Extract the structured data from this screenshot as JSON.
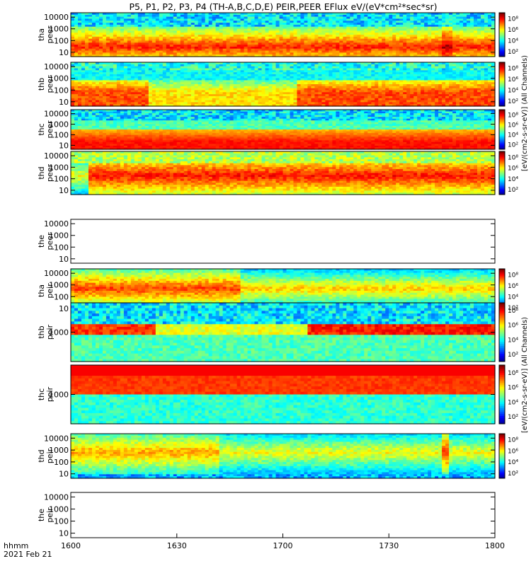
{
  "chart_data": {
    "type": "heatmap",
    "title": "P5, P1, P2, P3, P4 (TH-A,B,C,D,E) PEIR,PEER EFlux eV/(eV*cm²*sec*sr)",
    "x_label_line1": "hhmm",
    "x_label_line2": "2021 Feb 21",
    "x_ticks": [
      "1600",
      "1630",
      "1700",
      "1730",
      "1800"
    ],
    "x_range": [
      "16:00",
      "18:00"
    ],
    "colormap": [
      "#00007f",
      "#0000ff",
      "#007fff",
      "#00ffff",
      "#7fff7f",
      "#ffff00",
      "#ff7f00",
      "#ff0000",
      "#7f0000"
    ],
    "colorbar_ticks": [
      "10⁸",
      "10⁶",
      "10⁴",
      "10²"
    ],
    "colorbar_labels": {
      "peer": "[eV/(cm2-s-sr-eV)] (All Channels)",
      "peir": "[eV/(cm2-s-sr-eV)] (All Channels)"
    },
    "y_scale": "log",
    "panels": [
      {
        "name": "tha-peer",
        "ylabel_1": "tha",
        "ylabel_2": "peer",
        "yticks": [
          "10000",
          "1000",
          "100",
          "10"
        ],
        "ymin": 6,
        "ymax": 30000,
        "has_data": true,
        "profile": "tha_e"
      },
      {
        "name": "thb-peer",
        "ylabel_1": "thb",
        "ylabel_2": "peer",
        "yticks": [
          "10000",
          "1000",
          "100",
          "10"
        ],
        "ymin": 6,
        "ymax": 30000,
        "has_data": true,
        "profile": "thb_e"
      },
      {
        "name": "thc-peer",
        "ylabel_1": "thc",
        "ylabel_2": "peer",
        "yticks": [
          "10000",
          "1000",
          "100",
          "10"
        ],
        "ymin": 6,
        "ymax": 30000,
        "has_data": true,
        "profile": "thc_e"
      },
      {
        "name": "thd-peer",
        "ylabel_1": "thd",
        "ylabel_2": "peer",
        "yticks": [
          "10000",
          "1000",
          "100",
          "10"
        ],
        "ymin": 6,
        "ymax": 30000,
        "has_data": true,
        "profile": "thd_e"
      },
      {
        "name": "the-peer",
        "ylabel_1": "the",
        "ylabel_2": "peer",
        "yticks": [
          "10000",
          "1000",
          "100",
          "10"
        ],
        "ymin": 6,
        "ymax": 30000,
        "has_data": false
      },
      {
        "name": "tha-peir",
        "ylabel_1": "tha",
        "ylabel_2": "peir",
        "yticks": [
          "10000",
          "1000",
          "100",
          "10"
        ],
        "ymin": 6,
        "ymax": 30000,
        "has_data": true,
        "profile": "tha_i"
      },
      {
        "name": "thb-peir",
        "ylabel_1": "thb",
        "ylabel_2": "peir",
        "yticks": [
          "1000"
        ],
        "ymin": 6,
        "ymax": 30000,
        "has_data": true,
        "profile": "thb_i"
      },
      {
        "name": "thc-peir",
        "ylabel_1": "thc",
        "ylabel_2": "peir",
        "yticks": [
          "1000"
        ],
        "ymin": 6,
        "ymax": 30000,
        "has_data": true,
        "profile": "thc_i"
      },
      {
        "name": "thd-peir",
        "ylabel_1": "thd",
        "ylabel_2": "peir",
        "yticks": [
          "10000",
          "1000",
          "100",
          "10"
        ],
        "ymin": 6,
        "ymax": 30000,
        "has_data": true,
        "profile": "thd_i"
      },
      {
        "name": "the-peir",
        "ylabel_1": "the",
        "ylabel_2": "peir",
        "yticks": [
          "10000",
          "1000",
          "100",
          "10"
        ],
        "ymin": 6,
        "ymax": 30000,
        "has_data": false
      }
    ]
  }
}
